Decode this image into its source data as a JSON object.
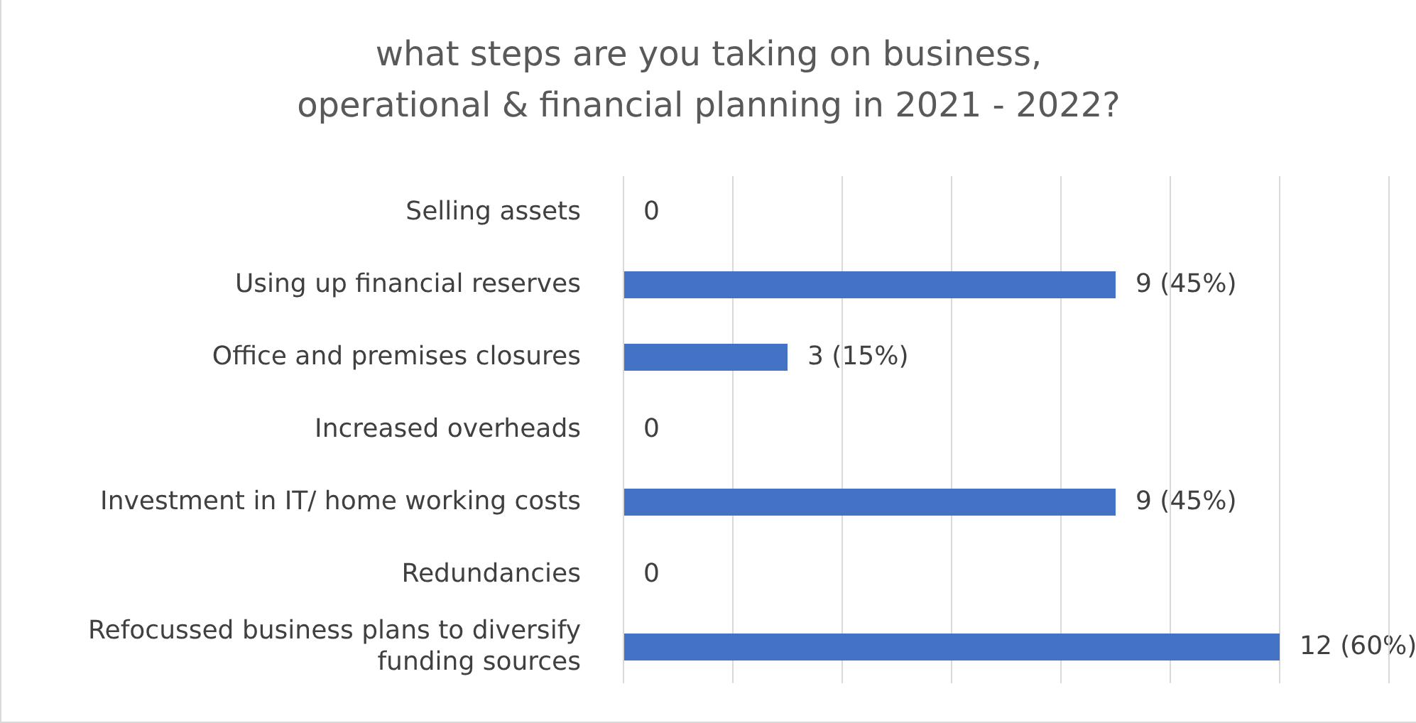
{
  "chart_data": {
    "type": "bar",
    "orientation": "horizontal",
    "title": "what steps are you taking on business, operational & financial planning in 2021 - 2022?",
    "categories": [
      "Selling assets",
      "Using up financial reserves",
      "Office and premises closures",
      "Increased overheads",
      "Investment in IT/ home working costs",
      "Redundancies",
      "Refocussed business plans to diversify funding sources"
    ],
    "values": [
      0,
      9,
      3,
      0,
      9,
      0,
      12
    ],
    "value_labels": [
      "0",
      "9 (45%)",
      "3 (15%)",
      "0",
      "9 (45%)",
      "0",
      "12 (60%)"
    ],
    "color": "#4472c4",
    "xlim": [
      0,
      14
    ],
    "tick_labels": "y",
    "grid": "x",
    "legend": false
  }
}
